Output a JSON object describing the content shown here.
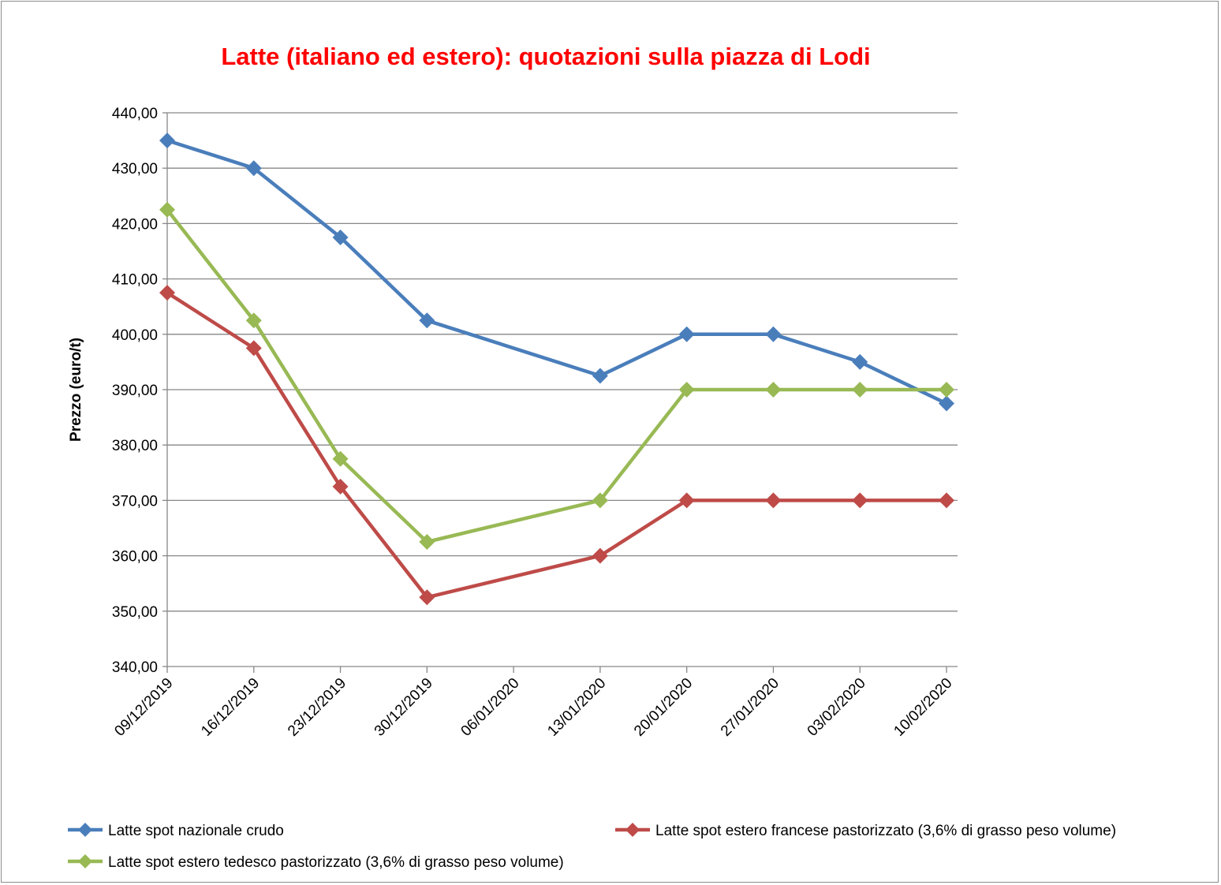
{
  "chart_data": {
    "type": "line",
    "title": "Latte (italiano ed estero): quotazioni sulla piazza di Lodi",
    "title_color": "#ff0000",
    "xlabel": "",
    "ylabel": "Prezzo (euro/t)",
    "ylim": [
      340,
      440
    ],
    "y_step": 10,
    "y_ticks": [
      "340,00",
      "350,00",
      "360,00",
      "370,00",
      "380,00",
      "390,00",
      "400,00",
      "410,00",
      "420,00",
      "430,00",
      "440,00"
    ],
    "x_axis_type": "date",
    "x_range": [
      "2019-12-09",
      "2020-02-10"
    ],
    "x_tick_labels": [
      "09/12/2019",
      "16/12/2019",
      "23/12/2019",
      "30/12/2019",
      "06/01/2020",
      "13/01/2020",
      "20/01/2020",
      "27/01/2020",
      "03/02/2020",
      "10/02/2020"
    ],
    "grid": "horizontal",
    "legend_position": "bottom",
    "marker": "diamond",
    "series": [
      {
        "name": "Latte spot nazionale crudo",
        "color": "#4a7ebb",
        "points": [
          {
            "x": "2019-12-09",
            "y": 435.0
          },
          {
            "x": "2019-12-16",
            "y": 430.0
          },
          {
            "x": "2019-12-23",
            "y": 417.5
          },
          {
            "x": "2019-12-30",
            "y": 402.5
          },
          {
            "x": "2020-01-13",
            "y": 392.5
          },
          {
            "x": "2020-01-20",
            "y": 400.0
          },
          {
            "x": "2020-01-27",
            "y": 400.0
          },
          {
            "x": "2020-02-03",
            "y": 395.0
          },
          {
            "x": "2020-02-10",
            "y": 387.5
          }
        ]
      },
      {
        "name": "Latte spot estero francese pastorizzato (3,6% di grasso peso volume)",
        "color": "#be4b48",
        "points": [
          {
            "x": "2019-12-09",
            "y": 407.5
          },
          {
            "x": "2019-12-16",
            "y": 397.5
          },
          {
            "x": "2019-12-23",
            "y": 372.5
          },
          {
            "x": "2019-12-30",
            "y": 352.5
          },
          {
            "x": "2020-01-13",
            "y": 360.0
          },
          {
            "x": "2020-01-20",
            "y": 370.0
          },
          {
            "x": "2020-01-27",
            "y": 370.0
          },
          {
            "x": "2020-02-03",
            "y": 370.0
          },
          {
            "x": "2020-02-10",
            "y": 370.0
          }
        ]
      },
      {
        "name": "Latte spot estero tedesco pastorizzato (3,6% di grasso peso volume)",
        "color": "#98b954",
        "points": [
          {
            "x": "2019-12-09",
            "y": 422.5
          },
          {
            "x": "2019-12-16",
            "y": 402.5
          },
          {
            "x": "2019-12-23",
            "y": 377.5
          },
          {
            "x": "2019-12-30",
            "y": 362.5
          },
          {
            "x": "2020-01-13",
            "y": 370.0
          },
          {
            "x": "2020-01-20",
            "y": 390.0
          },
          {
            "x": "2020-01-27",
            "y": 390.0
          },
          {
            "x": "2020-02-03",
            "y": 390.0
          },
          {
            "x": "2020-02-10",
            "y": 390.0
          }
        ]
      }
    ]
  }
}
